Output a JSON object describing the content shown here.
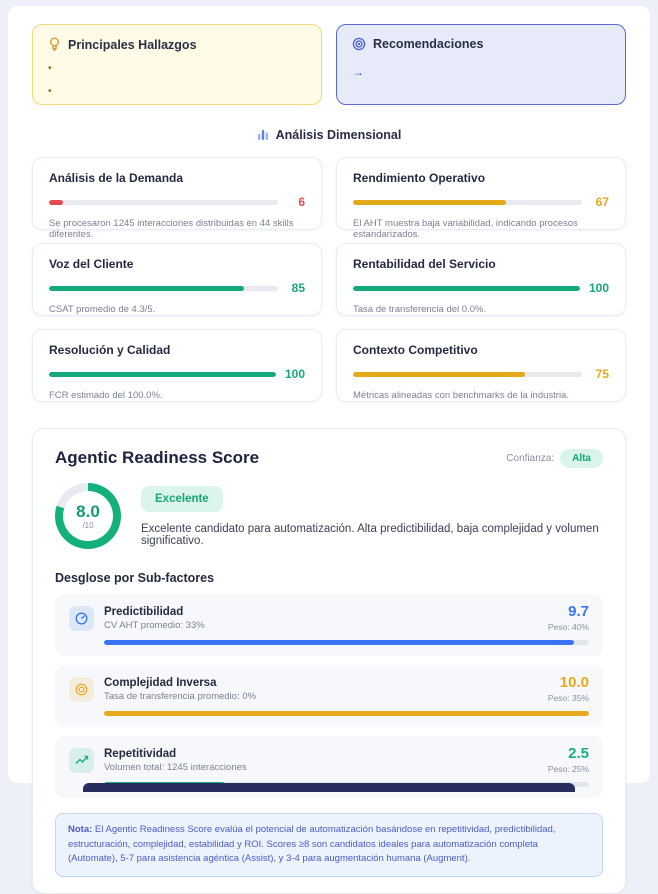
{
  "highlights": {
    "findings": {
      "title": "Principales Hallazgos",
      "bullets": [
        "",
        ""
      ]
    },
    "recommendations": {
      "title": "Recomendaciones",
      "items": [
        "→"
      ]
    }
  },
  "dimensional": {
    "section_title": "Análisis Dimensional",
    "cards": [
      {
        "title": "Análisis de la Demanda",
        "score": 6,
        "color": "#e5484d",
        "description": "Se procesaron 1245 interacciones distribuidas en 44 skills diferentes."
      },
      {
        "title": "Rendimiento Operativo",
        "score": 67,
        "color": "#e2a918",
        "description": "El AHT muestra baja variabilidad, indicando procesos estandarizados."
      },
      {
        "title": "Voz del Cliente",
        "score": 85,
        "color": "#14a97c",
        "description": "CSAT promedio de 4.3/5."
      },
      {
        "title": "Rentabilidad del Servicio",
        "score": 100,
        "color": "#14a97c",
        "description": "Tasa de transferencia del 0.0%."
      },
      {
        "title": "Resolución y Calidad",
        "score": 100,
        "color": "#14a97c",
        "description": "FCR estimado del 100.0%."
      },
      {
        "title": "Contexto Competitivo",
        "score": 75,
        "color": "#e2a918",
        "description": "Métricas alineadas con benchmarks de la industria."
      }
    ]
  },
  "ars": {
    "title": "Agentic Readiness Score",
    "confidence_label": "Confianza:",
    "confidence_value": "Alta",
    "score": "8.0",
    "score_max": "/10",
    "score_pct": 80,
    "score_color": "#13b179",
    "track_color": "#e7ebf1",
    "badge": "Excelente",
    "summary": "Excelente candidato para automatización. Alta predictibilidad, baja complejidad y volumen significativo.",
    "subfactors_title": "Desglose por Sub-factores",
    "subfactors": [
      {
        "icon": "gauge-icon",
        "name": "Predictibilidad",
        "detail": "CV AHT promedio: 33%",
        "value": "9.7",
        "weight": "Peso: 40%",
        "pct": 97,
        "color": "#3875f6"
      },
      {
        "icon": "target-icon",
        "name": "Complejidad Inversa",
        "detail": "Tasa de transferencia promedio: 0%",
        "value": "10.0",
        "weight": "Peso: 35%",
        "pct": 100,
        "color": "#e8a81c"
      },
      {
        "icon": "trending-up-icon",
        "name": "Repetitividad",
        "detail": "Volumen total: 1245 interacciones",
        "value": "2.5",
        "weight": "Peso: 25%",
        "pct": 25,
        "color": "#16b07c"
      }
    ],
    "note_label": "Nota:",
    "note_text": " El Agentic Readiness Score evalúa el potencial de automatización basándose en repetitividad, predictibilidad, estructuración, complejidad, estabilidad y ROI. Scores ≥8 son candidatos ideales para automatización completa (Automate), 5-7 para asistencia agéntica (Assist), y 3-4 para augmentación humana (Augment)."
  }
}
